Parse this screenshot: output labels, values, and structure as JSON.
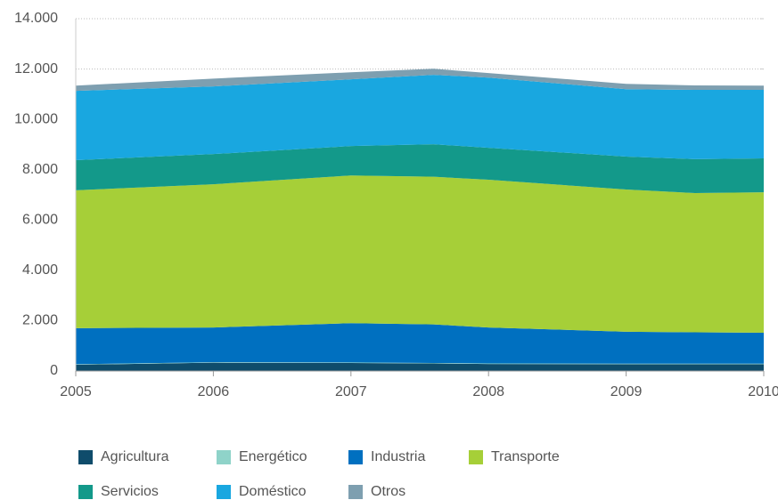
{
  "chart_data": {
    "type": "area",
    "stacked": true,
    "x": [
      2005,
      2006,
      2007,
      2007.6,
      2008,
      2009,
      2009.5,
      2010
    ],
    "series": [
      {
        "name": "Agricultura",
        "color": "#0f4c6b",
        "values": [
          250,
          330,
          320,
          300,
          280,
          270,
          270,
          270
        ]
      },
      {
        "name": "Energético",
        "color": "#8fd3c9",
        "values": [
          20,
          20,
          20,
          20,
          20,
          20,
          20,
          20
        ]
      },
      {
        "name": "Industria",
        "color": "#0070c0",
        "values": [
          1430,
          1380,
          1560,
          1530,
          1430,
          1270,
          1250,
          1230
        ]
      },
      {
        "name": "Transporte",
        "color": "#a6cf38",
        "values": [
          5480,
          5690,
          5870,
          5870,
          5870,
          5650,
          5530,
          5580
        ]
      },
      {
        "name": "Servicios",
        "color": "#13998a",
        "values": [
          1200,
          1200,
          1170,
          1290,
          1270,
          1310,
          1350,
          1350
        ]
      },
      {
        "name": "Doméstico",
        "color": "#19a7e0",
        "values": [
          2750,
          2690,
          2650,
          2760,
          2790,
          2680,
          2750,
          2720
        ]
      },
      {
        "name": "Otros",
        "color": "#7e9fb0",
        "values": [
          210,
          310,
          280,
          240,
          180,
          210,
          180,
          170
        ]
      }
    ],
    "xlim": [
      2005,
      2010
    ],
    "xticks": [
      2005,
      2006,
      2007,
      2008,
      2009,
      2010
    ],
    "ylim": [
      0,
      14000
    ],
    "yticks": [
      0,
      {
        "value": 2000,
        "label": "2.000"
      },
      {
        "value": 4000,
        "label": "4.000"
      },
      {
        "value": 6000,
        "label": "6.000"
      },
      {
        "value": 8000,
        "label": "8.000"
      },
      {
        "value": 10000,
        "label": "10.000"
      },
      {
        "value": 12000,
        "label": "12.000"
      },
      {
        "value": 14000,
        "label": "14.000"
      }
    ],
    "grid": true,
    "legend": "bottom"
  }
}
